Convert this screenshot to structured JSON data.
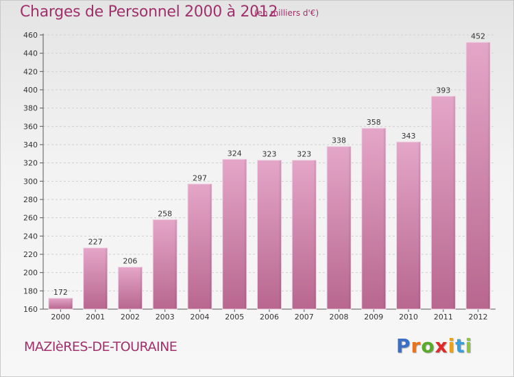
{
  "header": {
    "title": "Charges de Personnel 2000 à 2012",
    "subtitle": "(en milliers d'€)"
  },
  "footer": {
    "place": "MAZIèRES-DE-TOURAINE"
  },
  "logo": {
    "letters": [
      "P",
      "r",
      "o",
      "x",
      "i",
      "t",
      "i"
    ],
    "colors": [
      "#3a6fc4",
      "#e8731e",
      "#5aaa2a",
      "#e02a2a",
      "#e8a21e",
      "#3a9fd8",
      "#8dc63f"
    ]
  },
  "colors": {
    "bar": "#d98fb8",
    "bar_dark": "#b8678f",
    "text_accent": "#a0306a",
    "axis_text": "#333333"
  },
  "chart_data": {
    "type": "bar",
    "title": "Charges de Personnel 2000 à 2012",
    "subtitle": "(en milliers d'€)",
    "categories": [
      "2000",
      "2001",
      "2002",
      "2003",
      "2004",
      "2005",
      "2006",
      "2007",
      "2008",
      "2009",
      "2010",
      "2011",
      "2012"
    ],
    "values": [
      172,
      227,
      206,
      258,
      297,
      324,
      323,
      323,
      338,
      358,
      343,
      393,
      452
    ],
    "ylim": [
      160,
      460
    ],
    "yticks": [
      160,
      180,
      200,
      220,
      240,
      260,
      280,
      300,
      320,
      340,
      360,
      380,
      400,
      420,
      440,
      460
    ],
    "grid": true,
    "data_labels": true
  }
}
